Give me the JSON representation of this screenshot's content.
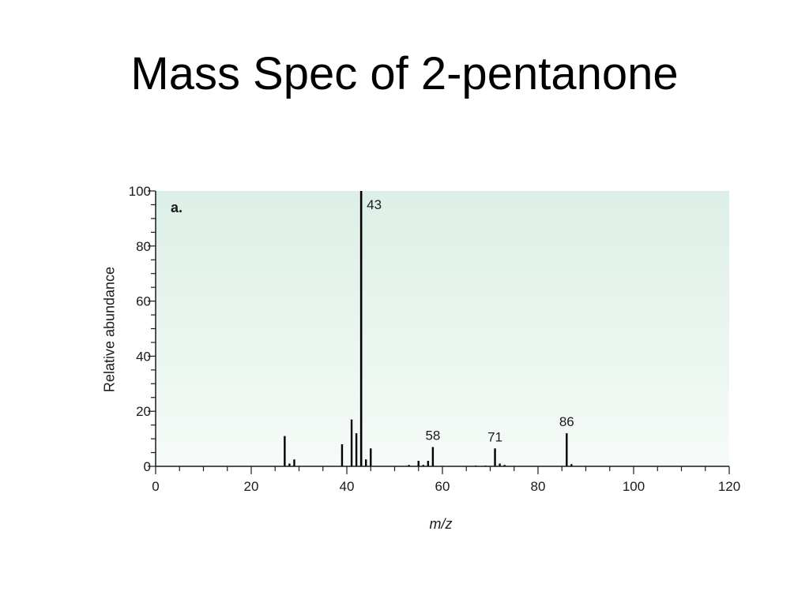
{
  "slide": {
    "title": "Mass Spec of 2-pentanone"
  },
  "colors": {
    "plot_bg_top": "#dcefe6",
    "plot_bg_bottom": "#f6fbf8",
    "bar": "#000000",
    "axis": "#1a1a1a"
  },
  "chart_data": {
    "type": "bar",
    "panel_label": "a.",
    "xlabel": "m/z",
    "ylabel": "Relative abundance",
    "xlim": [
      0,
      120
    ],
    "ylim": [
      0,
      100
    ],
    "xticks": [
      0,
      20,
      40,
      60,
      80,
      100,
      120
    ],
    "yticks": [
      0,
      20,
      40,
      60,
      80,
      100
    ],
    "x_minor_step": 5,
    "y_minor_step": 5,
    "grid": false,
    "legend": "none",
    "peaks": [
      {
        "mz": 27,
        "abundance": 11
      },
      {
        "mz": 28,
        "abundance": 1
      },
      {
        "mz": 29,
        "abundance": 2.5
      },
      {
        "mz": 39,
        "abundance": 8
      },
      {
        "mz": 41,
        "abundance": 17
      },
      {
        "mz": 42,
        "abundance": 12
      },
      {
        "mz": 43,
        "abundance": 100
      },
      {
        "mz": 44,
        "abundance": 2.5
      },
      {
        "mz": 45,
        "abundance": 6.5
      },
      {
        "mz": 53,
        "abundance": 0.5
      },
      {
        "mz": 55,
        "abundance": 2
      },
      {
        "mz": 56,
        "abundance": 0.5
      },
      {
        "mz": 57,
        "abundance": 2
      },
      {
        "mz": 58,
        "abundance": 7
      },
      {
        "mz": 67,
        "abundance": 0.3
      },
      {
        "mz": 69,
        "abundance": 0.3
      },
      {
        "mz": 71,
        "abundance": 6.5
      },
      {
        "mz": 72,
        "abundance": 1
      },
      {
        "mz": 73,
        "abundance": 0.5
      },
      {
        "mz": 86,
        "abundance": 12
      },
      {
        "mz": 87,
        "abundance": 0.8
      }
    ],
    "peak_labels": [
      {
        "mz": 43,
        "text": "43"
      },
      {
        "mz": 58,
        "text": "58"
      },
      {
        "mz": 71,
        "text": "71"
      },
      {
        "mz": 86,
        "text": "86"
      }
    ]
  }
}
